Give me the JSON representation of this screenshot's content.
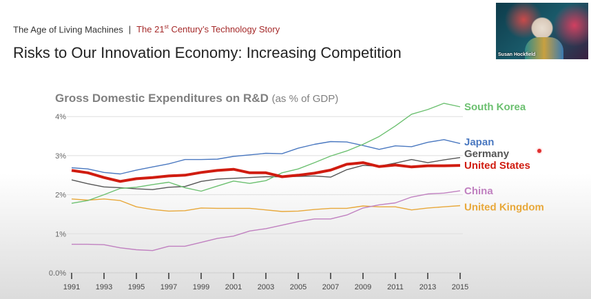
{
  "header": {
    "course": "The Age of Living Machines",
    "separator": "|",
    "subtitle_pre": "The 21",
    "subtitle_sup": "st",
    "subtitle_post": " Century’s Technology Story"
  },
  "slide_title": "Risks to Our Innovation Economy: Increasing Competition",
  "webcam": {
    "participant_name": "Susan Hockfield"
  },
  "chart_data": {
    "type": "line",
    "title": "Gross Domestic Expenditures on R&D",
    "title_unit": "(as % of GDP)",
    "xlabel": "",
    "ylabel": "",
    "ylim": [
      0,
      4.4
    ],
    "yticks": [
      0,
      1,
      2,
      3,
      4
    ],
    "ytick_labels": [
      "0.0%",
      "1%",
      "2%",
      "3%",
      "4%"
    ],
    "xtick_labels": [
      "1991",
      "1993",
      "1995",
      "1997",
      "1999",
      "2001",
      "2003",
      "2005",
      "2007",
      "2009",
      "2011",
      "2013",
      "2015"
    ],
    "grid": true,
    "legend": "right (direct labels)",
    "x": [
      1991,
      1992,
      1993,
      1994,
      1995,
      1996,
      1997,
      1998,
      1999,
      2000,
      2001,
      2002,
      2003,
      2004,
      2005,
      2006,
      2007,
      2008,
      2009,
      2010,
      2011,
      2012,
      2013,
      2014,
      2015
    ],
    "series": [
      {
        "name": "South Korea",
        "color": "#6cc070",
        "values": [
          1.78,
          1.85,
          2.0,
          2.16,
          2.19,
          2.26,
          2.32,
          2.18,
          2.09,
          2.22,
          2.35,
          2.29,
          2.36,
          2.56,
          2.66,
          2.82,
          2.99,
          3.12,
          3.29,
          3.49,
          3.76,
          4.06,
          4.18,
          4.34,
          4.25
        ]
      },
      {
        "name": "Japan",
        "color": "#4a78c0",
        "values": [
          2.69,
          2.66,
          2.57,
          2.53,
          2.63,
          2.71,
          2.79,
          2.9,
          2.9,
          2.91,
          2.98,
          3.02,
          3.06,
          3.05,
          3.19,
          3.29,
          3.36,
          3.35,
          3.26,
          3.16,
          3.25,
          3.23,
          3.34,
          3.41,
          3.31
        ]
      },
      {
        "name": "Germany",
        "color": "#555555",
        "values": [
          2.38,
          2.28,
          2.2,
          2.18,
          2.15,
          2.13,
          2.19,
          2.21,
          2.34,
          2.4,
          2.42,
          2.44,
          2.46,
          2.46,
          2.47,
          2.48,
          2.45,
          2.64,
          2.75,
          2.73,
          2.81,
          2.9,
          2.82,
          2.89,
          2.95
        ]
      },
      {
        "name": "United States",
        "color": "#d01c10",
        "values": [
          2.62,
          2.56,
          2.44,
          2.34,
          2.41,
          2.44,
          2.48,
          2.5,
          2.57,
          2.62,
          2.65,
          2.56,
          2.56,
          2.46,
          2.5,
          2.55,
          2.63,
          2.78,
          2.82,
          2.72,
          2.76,
          2.71,
          2.74,
          2.74,
          2.75
        ]
      },
      {
        "name": "China",
        "color": "#c080c0",
        "values": [
          0.73,
          0.73,
          0.72,
          0.64,
          0.59,
          0.57,
          0.68,
          0.68,
          0.78,
          0.88,
          0.94,
          1.07,
          1.13,
          1.22,
          1.31,
          1.38,
          1.38,
          1.48,
          1.66,
          1.74,
          1.79,
          1.94,
          2.02,
          2.04,
          2.1
        ]
      },
      {
        "name": "United Kingdom",
        "color": "#e8a83a",
        "values": [
          1.89,
          1.86,
          1.89,
          1.85,
          1.69,
          1.62,
          1.58,
          1.59,
          1.66,
          1.65,
          1.65,
          1.65,
          1.61,
          1.57,
          1.58,
          1.62,
          1.65,
          1.65,
          1.71,
          1.69,
          1.69,
          1.61,
          1.66,
          1.69,
          1.72
        ]
      }
    ]
  }
}
